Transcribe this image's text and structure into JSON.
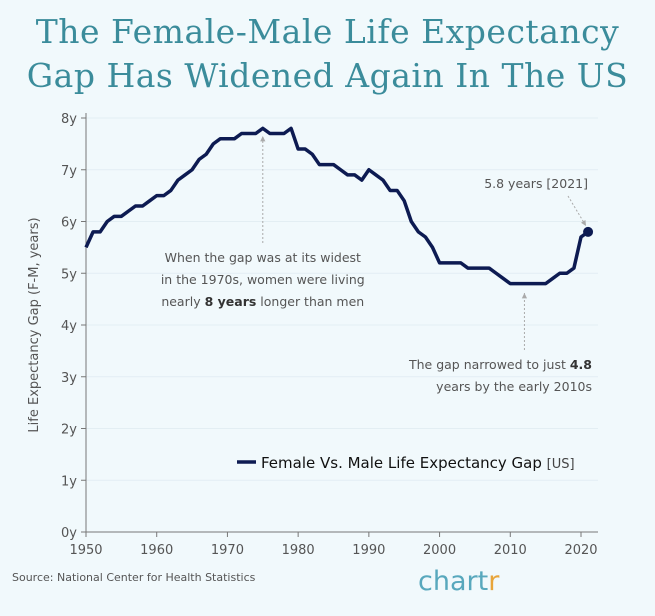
{
  "title_line1": "The Female-Male Life Expectancy",
  "title_line2": "Gap Has Widened Again In The US",
  "source": "Source: National Center for Health Statistics",
  "logo_main": "chart",
  "logo_accent": "r",
  "colors": {
    "line": "#0d1b52",
    "title": "#3b8c9b",
    "grid": "#e3eef3",
    "annotation": "#555555"
  },
  "chart_data": {
    "type": "line",
    "title": "The Female-Male Life Expectancy Gap Has Widened Again In The US",
    "xlabel": "",
    "ylabel": "Life Expectancy Gap (F-M, years)",
    "xlim": [
      1950,
      2022
    ],
    "ylim": [
      0,
      8
    ],
    "x_ticks": [
      "1950",
      "1960",
      "1970",
      "1980",
      "1990",
      "2000",
      "2010",
      "2020"
    ],
    "y_ticks": [
      "0y",
      "1y",
      "2y",
      "3y",
      "4y",
      "5y",
      "6y",
      "7y",
      "8y"
    ],
    "grid": true,
    "legend": {
      "position": "bottom-right",
      "label": "Female Vs. Male Life Expectancy Gap",
      "suffix": "[US]"
    },
    "series": [
      {
        "name": "Female Vs. Male Life Expectancy Gap",
        "x": [
          1950,
          1951,
          1952,
          1953,
          1954,
          1955,
          1956,
          1957,
          1958,
          1959,
          1960,
          1961,
          1962,
          1963,
          1964,
          1965,
          1966,
          1967,
          1968,
          1969,
          1970,
          1971,
          1972,
          1973,
          1974,
          1975,
          1976,
          1977,
          1978,
          1979,
          1980,
          1981,
          1982,
          1983,
          1984,
          1985,
          1986,
          1987,
          1988,
          1989,
          1990,
          1991,
          1992,
          1993,
          1994,
          1995,
          1996,
          1997,
          1998,
          1999,
          2000,
          2001,
          2002,
          2003,
          2004,
          2005,
          2006,
          2007,
          2008,
          2009,
          2010,
          2011,
          2012,
          2013,
          2014,
          2015,
          2016,
          2017,
          2018,
          2019,
          2020,
          2021
        ],
        "values": [
          5.5,
          5.8,
          5.8,
          6.0,
          6.1,
          6.1,
          6.2,
          6.3,
          6.3,
          6.4,
          6.5,
          6.5,
          6.6,
          6.8,
          6.9,
          7.0,
          7.2,
          7.3,
          7.5,
          7.6,
          7.6,
          7.6,
          7.7,
          7.7,
          7.7,
          7.8,
          7.7,
          7.7,
          7.7,
          7.8,
          7.4,
          7.4,
          7.3,
          7.1,
          7.1,
          7.1,
          7.0,
          6.9,
          6.9,
          6.8,
          7.0,
          6.9,
          6.8,
          6.6,
          6.6,
          6.4,
          6.0,
          5.8,
          5.7,
          5.5,
          5.2,
          5.2,
          5.2,
          5.2,
          5.1,
          5.1,
          5.1,
          5.1,
          5.0,
          4.9,
          4.8,
          4.8,
          4.8,
          4.8,
          4.8,
          4.8,
          4.9,
          5.0,
          5.0,
          5.1,
          5.7,
          5.8
        ]
      }
    ],
    "annotations": [
      {
        "x": 1975,
        "y": 7.8,
        "lines": [
          "When the gap was at its widest",
          "in the 1970s, women were living",
          "nearly 8 years longer than men"
        ],
        "bold": "8 years"
      },
      {
        "x": 2012,
        "y": 4.8,
        "lines": [
          "The gap narrowed to just 4.8",
          "years by the early 2010s"
        ],
        "bold": "4.8"
      },
      {
        "x": 2021,
        "y": 5.8,
        "lines": [
          "5.8 years [2021]"
        ]
      }
    ]
  }
}
